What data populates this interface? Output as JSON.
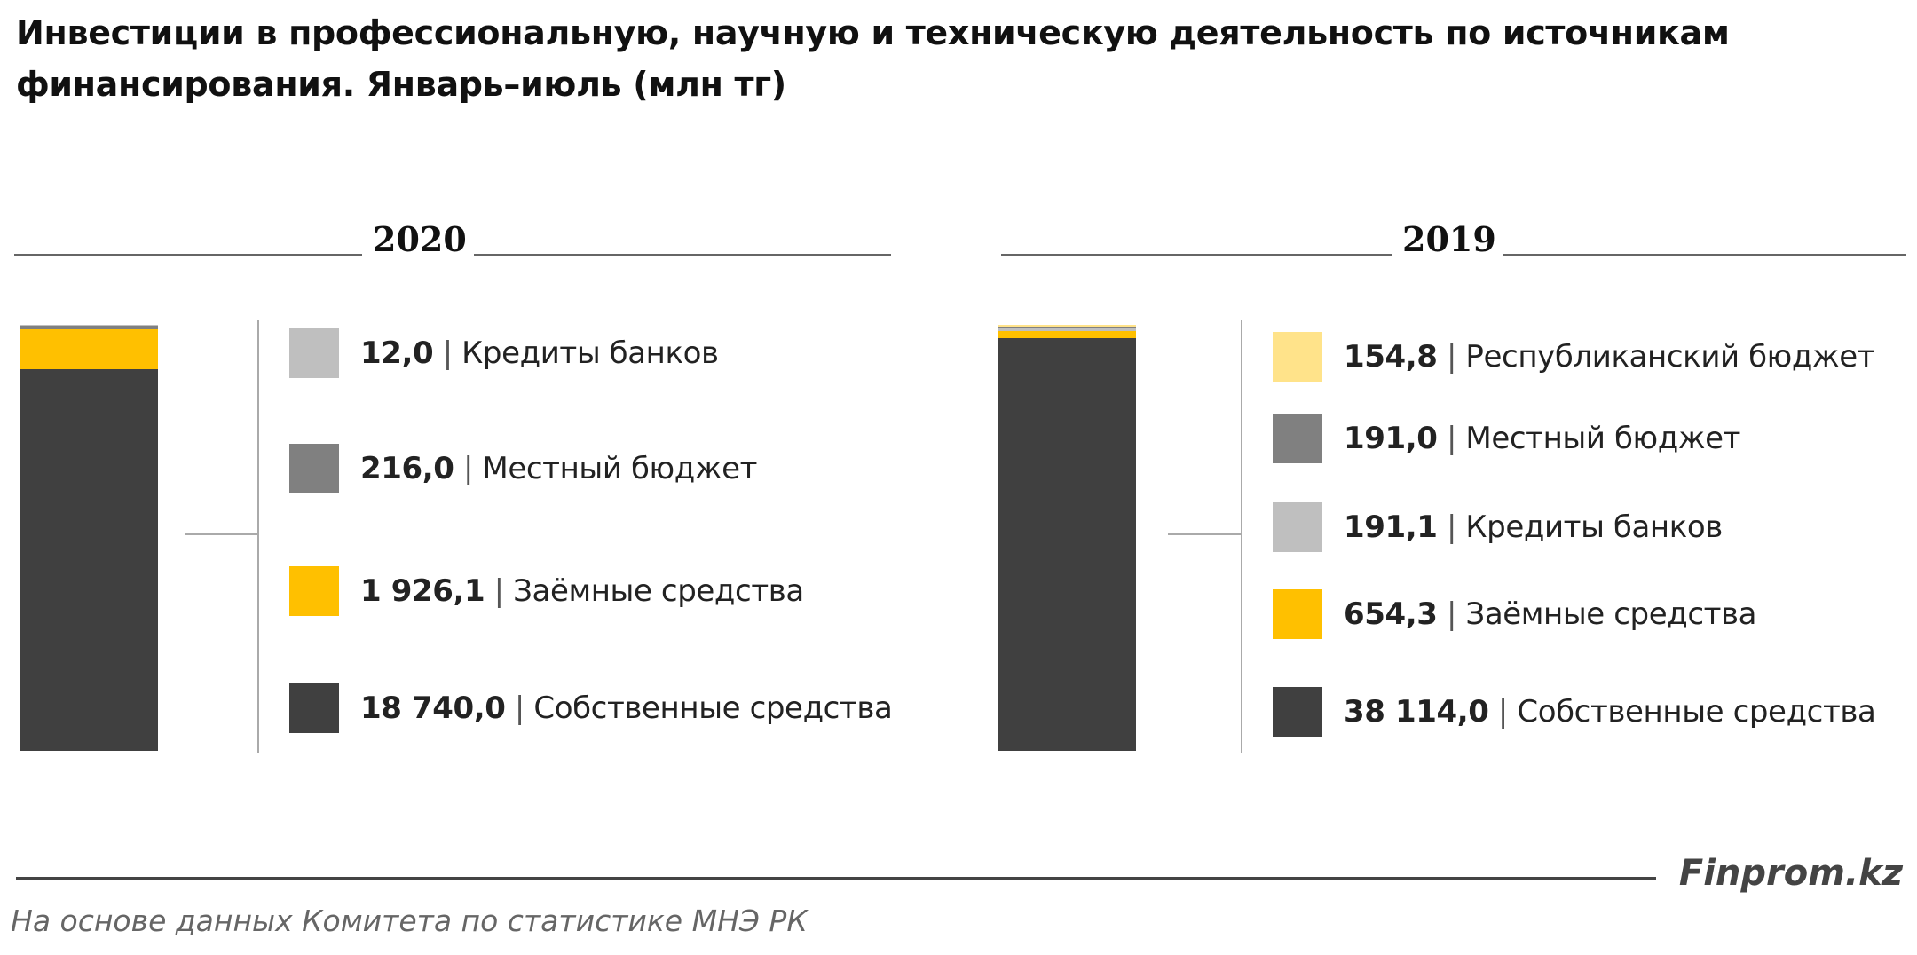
{
  "title": "Инвестиции в профессиональную, научную и техническую деятельность по источникам финансирования.  Январь–июль (млн тг)",
  "brand": "Finprom.kz",
  "source": "На основе данных  Комитета по статистике МНЭ РК",
  "colors": {
    "own_funds": "#404040",
    "borrowed_funds": "#FFC000",
    "bank_credits": "#BFBFBF",
    "local_budget": "#808080",
    "republican_budget": "#FFE38A"
  },
  "chart_data": [
    {
      "type": "bar",
      "stacked": true,
      "title": "2020",
      "series": [
        {
          "name": "Собственные средства",
          "value": 18740.0,
          "label": "18 740,0",
          "color_key": "own_funds"
        },
        {
          "name": "Заёмные средства",
          "value": 1926.1,
          "label": "1 926,1",
          "color_key": "borrowed_funds"
        },
        {
          "name": "Местный бюджет",
          "value": 216.0,
          "label": "216,0",
          "color_key": "local_budget"
        },
        {
          "name": "Кредиты банков",
          "value": 12.0,
          "label": "12,0",
          "color_key": "bank_credits"
        }
      ],
      "legend_order_top_to_bottom": [
        "Кредиты банков",
        "Местный бюджет",
        "Заёмные средства",
        "Собственные средства"
      ]
    },
    {
      "type": "bar",
      "stacked": true,
      "title": "2019",
      "series": [
        {
          "name": "Собственные средства",
          "value": 38114.0,
          "label": "38 114,0",
          "color_key": "own_funds"
        },
        {
          "name": "Заёмные средства",
          "value": 654.3,
          "label": "654,3",
          "color_key": "borrowed_funds"
        },
        {
          "name": "Кредиты банков",
          "value": 191.1,
          "label": "191,1",
          "color_key": "bank_credits"
        },
        {
          "name": "Местный бюджет",
          "value": 191.0,
          "label": "191,0",
          "color_key": "local_budget"
        },
        {
          "name": "Республиканский бюджет",
          "value": 154.8,
          "label": "154,8",
          "color_key": "republican_budget"
        }
      ],
      "legend_order_top_to_bottom": [
        "Республиканский бюджет",
        "Местный бюджет",
        "Кредиты банков",
        "Заёмные средства",
        "Собственные средства"
      ]
    }
  ]
}
